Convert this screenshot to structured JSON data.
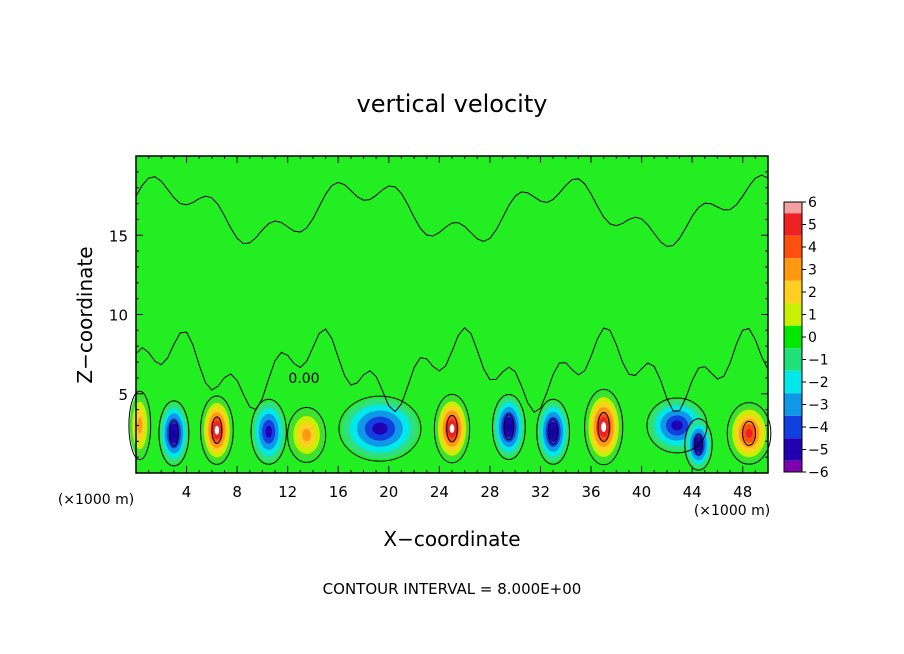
{
  "chart_data": {
    "type": "heatmap",
    "title": "vertical velocity",
    "xlabel": "X−coordinate",
    "ylabel": "Z−coordinate",
    "x_unit_left": "(×1000 m)",
    "x_unit_right": "(×1000 m)",
    "xlim": [
      0,
      50
    ],
    "ylim": [
      0,
      20
    ],
    "xticks": [
      "4",
      "8",
      "12",
      "16",
      "20",
      "24",
      "28",
      "32",
      "36",
      "40",
      "44",
      "48"
    ],
    "xtick_values": [
      4,
      8,
      12,
      16,
      20,
      24,
      28,
      32,
      36,
      40,
      44,
      48
    ],
    "yticks": [
      "5",
      "10",
      "15"
    ],
    "ytick_values": [
      5,
      10,
      15
    ],
    "colorbar": {
      "ticks": [
        "6",
        "5",
        "4",
        "3",
        "2",
        "1",
        "0",
        "−1",
        "−2",
        "−3",
        "−4",
        "−5",
        "−6"
      ],
      "tick_values": [
        6,
        5,
        4,
        3,
        2,
        1,
        0,
        -1,
        -2,
        -3,
        -4,
        -5,
        -6
      ],
      "colors": [
        "#f4a0a0",
        "#ee2222",
        "#ff5010",
        "#ff9a10",
        "#ffd020",
        "#c8f000",
        "#00e800",
        "#20e078",
        "#00e8e8",
        "#1098e8",
        "#1040e0",
        "#2000b0",
        "#8000b0"
      ]
    },
    "cells": [
      {
        "x": 3.0,
        "z": 2.5,
        "w": -5.0,
        "sx": 1.1,
        "sz": 1.9
      },
      {
        "x": 6.4,
        "z": 2.7,
        "w": 6.0,
        "sx": 1.2,
        "sz": 2.0
      },
      {
        "x": 10.5,
        "z": 2.6,
        "w": -4.0,
        "sx": 1.3,
        "sz": 1.9
      },
      {
        "x": 13.5,
        "z": 2.4,
        "w": 3.2,
        "sx": 1.4,
        "sz": 1.6
      },
      {
        "x": 19.3,
        "z": 2.8,
        "w": -3.5,
        "sx": 3.0,
        "sz": 1.9
      },
      {
        "x": 25.0,
        "z": 2.8,
        "w": 6.0,
        "sx": 1.3,
        "sz": 2.0
      },
      {
        "x": 29.5,
        "z": 2.9,
        "w": -5.0,
        "sx": 1.2,
        "sz": 1.9
      },
      {
        "x": 33.0,
        "z": 2.6,
        "w": -5.0,
        "sx": 1.2,
        "sz": 1.9
      },
      {
        "x": 37.0,
        "z": 2.9,
        "w": 6.0,
        "sx": 1.4,
        "sz": 2.2
      },
      {
        "x": 42.8,
        "z": 3.0,
        "w": -3.5,
        "sx": 2.2,
        "sz": 1.6
      },
      {
        "x": 44.5,
        "z": 1.8,
        "w": -5.0,
        "sx": 1.0,
        "sz": 1.5
      },
      {
        "x": 48.5,
        "z": 2.5,
        "w": 5.0,
        "sx": 1.6,
        "sz": 1.8
      },
      {
        "x": 0.3,
        "z": 3.0,
        "w": 3.0,
        "sx": 0.8,
        "sz": 2.0
      }
    ],
    "contour_label": "0.00",
    "footer": "CONTOUR INTERVAL = 8.000E+00",
    "grid": false,
    "legend": "right colorbar"
  }
}
